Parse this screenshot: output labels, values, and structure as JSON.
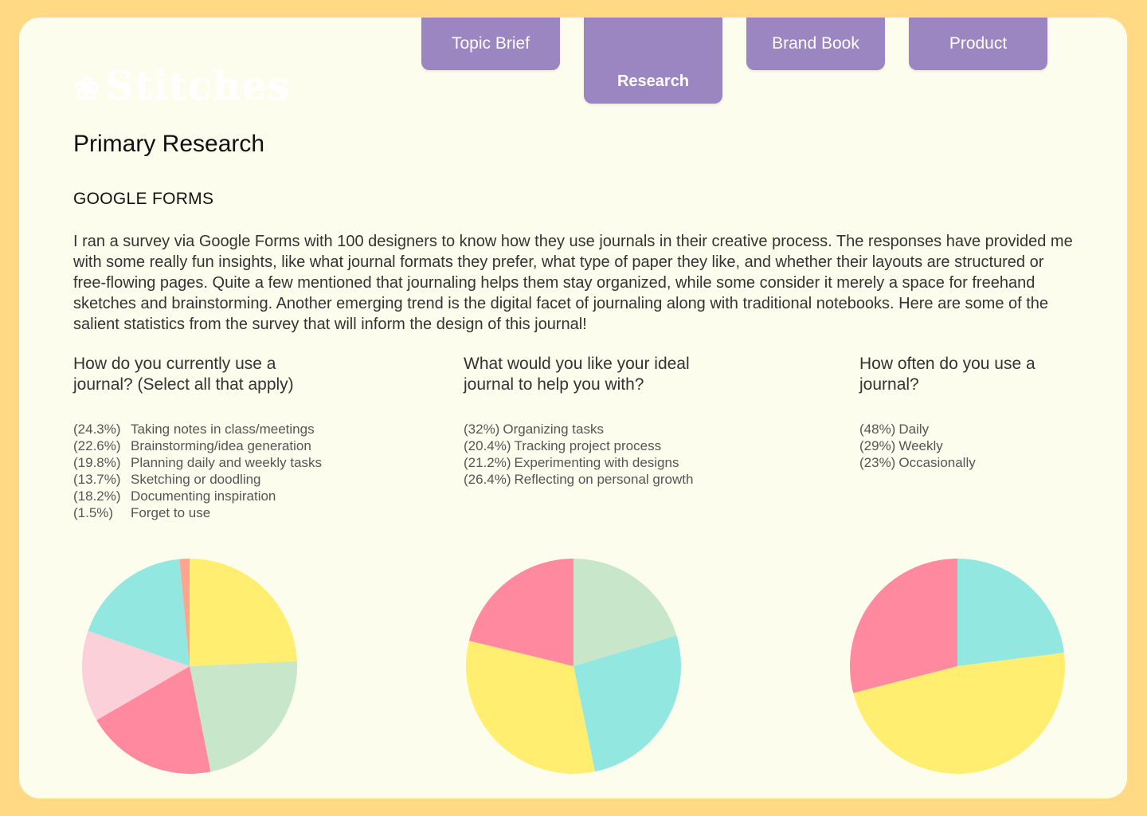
{
  "brand": {
    "name": "Stitches",
    "logo_icon": "flower-icon"
  },
  "nav": {
    "tabs": [
      {
        "label": "Topic Brief",
        "active": false
      },
      {
        "label": "Research",
        "active": true
      },
      {
        "label": "Brand Book",
        "active": false
      },
      {
        "label": "Product",
        "active": false
      }
    ],
    "tab_color": "#9B86C2"
  },
  "page": {
    "title": "Primary Research",
    "section": "GOOGLE FORMS",
    "intro": "I ran a survey via Google Forms with 100 designers to know how they use journals in their creative process. The responses have provided me with some really fun insights, like what journal formats they prefer, what type of paper they like, and whether their layouts are structured or free-flowing pages. Quite a few mentioned that journaling helps them stay organized, while some consider it merely a space for freehand sketches and brainstorming. Another emerging trend is the digital facet of journaling along with traditional notebooks. Here are some of the salient statistics from the survey that will inform the design of this journal!"
  },
  "chart_data": [
    {
      "type": "pie",
      "title": "How do you currently use a journal? (Select all that apply)",
      "title_lines": [
        "How do you currently use a",
        "journal? (Select all that apply)"
      ],
      "legend_labels": [
        "(24.3%)",
        "(22.6%)",
        "(19.8%)",
        "(13.7%)",
        "(18.2%)",
        "(1.5%)"
      ],
      "categories": [
        "Taking notes in class/meetings",
        "Brainstorming/idea generation",
        "Planning daily and weekly tasks",
        "Sketching or doodling",
        "Documenting inspiration",
        "Forget to use"
      ],
      "values": [
        24.3,
        22.6,
        19.8,
        13.7,
        18.2,
        1.5
      ],
      "colors": [
        "#FFEE70",
        "#C8E6C9",
        "#FF8AA0",
        "#FCD0D9",
        "#92E8E0",
        "#FFA58F"
      ]
    },
    {
      "type": "pie",
      "title": "What would you like your ideal journal to help you with?",
      "title_lines": [
        "What would you like your ideal",
        "journal to help you with?"
      ],
      "legend_labels": [
        "(32%)",
        "(20.4%)",
        "(21.2%)",
        "(26.4%)"
      ],
      "categories": [
        "Organizing tasks",
        "Tracking project process",
        "Experimenting with designs",
        "Reflecting on personal growth"
      ],
      "values": [
        32,
        20.4,
        21.2,
        26.4
      ],
      "slice_order": [
        1,
        3,
        0,
        2
      ],
      "colors": [
        "#FFEE70",
        "#C8E6C9",
        "#FF8AA0",
        "#92E8E0"
      ]
    },
    {
      "type": "pie",
      "title": "How often do you use a journal?",
      "title_lines": [
        "How often do you use a",
        "journal?"
      ],
      "legend_labels": [
        "(48%)",
        "(29%)",
        "(23%)"
      ],
      "categories": [
        "Daily",
        "Weekly",
        "Occasionally"
      ],
      "values": [
        48,
        29,
        23
      ],
      "slice_order": [
        2,
        0,
        1
      ],
      "colors": [
        "#FFEE70",
        "#FF8AA0",
        "#92E8E0"
      ]
    }
  ]
}
